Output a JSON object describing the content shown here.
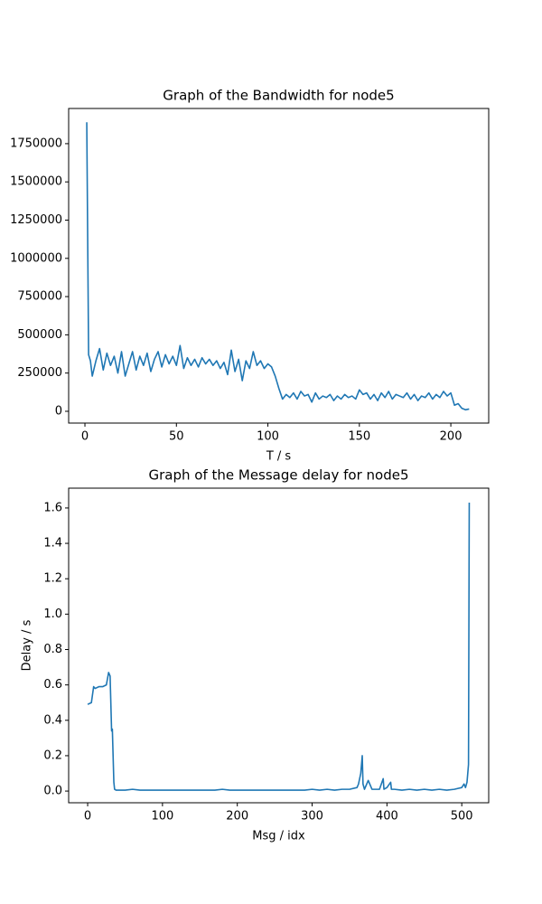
{
  "chart_data": [
    {
      "type": "line",
      "title": "Graph of the Bandwidth for node5",
      "x_label": "T / s",
      "x": [
        1,
        2,
        3,
        4,
        6,
        8,
        10,
        12,
        14,
        16,
        18,
        20,
        22,
        24,
        26,
        28,
        30,
        32,
        34,
        36,
        38,
        40,
        42,
        44,
        46,
        48,
        50,
        52,
        54,
        56,
        58,
        60,
        62,
        64,
        66,
        68,
        70,
        72,
        74,
        76,
        78,
        80,
        82,
        84,
        86,
        88,
        90,
        92,
        94,
        96,
        98,
        100,
        102,
        104,
        106,
        108,
        110,
        112,
        114,
        116,
        118,
        120,
        122,
        124,
        126,
        128,
        130,
        132,
        134,
        136,
        138,
        140,
        142,
        144,
        146,
        148,
        150,
        152,
        154,
        156,
        158,
        160,
        162,
        164,
        166,
        168,
        170,
        172,
        174,
        176,
        178,
        180,
        182,
        184,
        186,
        188,
        190,
        192,
        194,
        196,
        198,
        200,
        202,
        204,
        206,
        208,
        210
      ],
      "series": [
        {
          "color": "#1f77b4",
          "values": [
            1890000,
            370000,
            330000,
            230000,
            330000,
            410000,
            270000,
            380000,
            300000,
            360000,
            250000,
            390000,
            230000,
            310000,
            390000,
            270000,
            360000,
            300000,
            380000,
            260000,
            340000,
            390000,
            290000,
            370000,
            310000,
            360000,
            300000,
            430000,
            280000,
            350000,
            300000,
            340000,
            290000,
            350000,
            310000,
            340000,
            300000,
            330000,
            280000,
            320000,
            240000,
            400000,
            260000,
            340000,
            200000,
            330000,
            280000,
            390000,
            300000,
            330000,
            280000,
            310000,
            290000,
            230000,
            150000,
            80000,
            110000,
            90000,
            120000,
            80000,
            130000,
            100000,
            110000,
            60000,
            120000,
            80000,
            100000,
            90000,
            110000,
            70000,
            100000,
            80000,
            110000,
            90000,
            100000,
            80000,
            140000,
            110000,
            120000,
            80000,
            110000,
            70000,
            120000,
            90000,
            130000,
            80000,
            110000,
            100000,
            90000,
            120000,
            80000,
            110000,
            70000,
            100000,
            90000,
            120000,
            80000,
            110000,
            90000,
            130000,
            100000,
            120000,
            40000,
            50000,
            20000,
            10000,
            15000
          ]
        }
      ],
      "xlim": [
        -8.9,
        220.7
      ],
      "xticks": [
        0,
        50,
        100,
        150,
        200
      ],
      "ylim": [
        -77000,
        1980000
      ],
      "yticks": [
        0,
        250000,
        500000,
        750000,
        1000000,
        1250000,
        1500000,
        1750000
      ]
    },
    {
      "type": "line",
      "title": "Graph of the Message delay for node5",
      "x_label": "Msg / idx",
      "y_label": "Delay / s",
      "x": [
        0,
        5,
        8,
        10,
        15,
        20,
        25,
        28,
        30,
        32,
        33,
        35,
        36,
        38,
        40,
        50,
        60,
        70,
        80,
        90,
        100,
        110,
        120,
        130,
        140,
        150,
        160,
        170,
        180,
        190,
        200,
        210,
        220,
        230,
        240,
        250,
        260,
        270,
        280,
        290,
        300,
        310,
        320,
        330,
        340,
        350,
        360,
        362,
        365,
        367,
        368,
        370,
        375,
        380,
        390,
        395,
        396,
        400,
        405,
        406,
        410,
        420,
        430,
        440,
        450,
        460,
        470,
        480,
        490,
        500,
        503,
        505,
        507,
        508,
        509,
        510
      ],
      "series": [
        {
          "color": "#1f77b4",
          "values": [
            0.49,
            0.5,
            0.59,
            0.58,
            0.59,
            0.59,
            0.6,
            0.67,
            0.65,
            0.34,
            0.35,
            0.05,
            0.01,
            0.005,
            0.005,
            0.005,
            0.01,
            0.005,
            0.005,
            0.005,
            0.005,
            0.005,
            0.005,
            0.005,
            0.005,
            0.005,
            0.005,
            0.005,
            0.01,
            0.005,
            0.005,
            0.005,
            0.005,
            0.005,
            0.005,
            0.005,
            0.005,
            0.005,
            0.005,
            0.005,
            0.01,
            0.005,
            0.01,
            0.005,
            0.01,
            0.01,
            0.02,
            0.04,
            0.1,
            0.2,
            0.04,
            0.01,
            0.06,
            0.01,
            0.01,
            0.07,
            0.01,
            0.02,
            0.05,
            0.01,
            0.01,
            0.005,
            0.01,
            0.005,
            0.01,
            0.005,
            0.01,
            0.005,
            0.01,
            0.02,
            0.04,
            0.02,
            0.05,
            0.1,
            0.15,
            1.63
          ]
        }
      ],
      "xlim": [
        -25.4,
        536
      ],
      "xticks": [
        0,
        100,
        200,
        300,
        400,
        500
      ],
      "ylim": [
        -0.066,
        1.712
      ],
      "yticks": [
        {
          "value": 0,
          "label": "0.0"
        },
        0.2,
        0.4,
        0.6,
        0.8,
        {
          "value": 1,
          "label": "1.0"
        },
        1.2,
        1.4,
        1.6
      ]
    }
  ]
}
